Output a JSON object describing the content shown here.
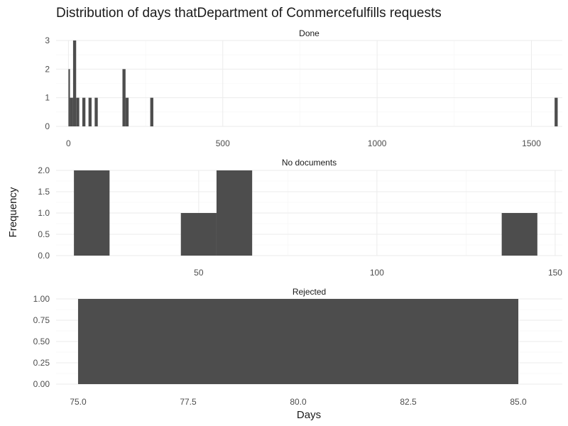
{
  "title": "Distribution of days thatDepartment of Commercefulfills requests",
  "xlabel": "Days",
  "ylabel": "Frequency",
  "colors": {
    "bar": "#4d4d4d",
    "grid_major": "#ebebeb",
    "grid_minor": "#f5f5f5",
    "text": "#1a1a1a",
    "tick": "#4d4d4d"
  },
  "chart_data": [
    {
      "type": "bar",
      "facet": "Done",
      "xlim": [
        -40,
        1600
      ],
      "ylim": [
        0,
        3
      ],
      "xticks": [
        0,
        500,
        1000,
        1500
      ],
      "xtick_labels": [
        "0",
        "500",
        "1000",
        "1500"
      ],
      "yticks": [
        0,
        1,
        2,
        3
      ],
      "ytick_labels": [
        "0",
        "1",
        "2",
        "3"
      ],
      "bars": [
        {
          "x0": 0,
          "x1": 5,
          "y": 2
        },
        {
          "x0": 5,
          "x1": 15,
          "y": 1
        },
        {
          "x0": 15,
          "x1": 25,
          "y": 3
        },
        {
          "x0": 25,
          "x1": 35,
          "y": 1
        },
        {
          "x0": 45,
          "x1": 55,
          "y": 1
        },
        {
          "x0": 65,
          "x1": 75,
          "y": 1
        },
        {
          "x0": 85,
          "x1": 95,
          "y": 1
        },
        {
          "x0": 175,
          "x1": 185,
          "y": 2
        },
        {
          "x0": 185,
          "x1": 195,
          "y": 1
        },
        {
          "x0": 265,
          "x1": 275,
          "y": 1
        },
        {
          "x0": 1575,
          "x1": 1585,
          "y": 1
        }
      ]
    },
    {
      "type": "bar",
      "facet": "No documents",
      "xlim": [
        10,
        152
      ],
      "ylim": [
        0,
        2
      ],
      "xticks": [
        50,
        100,
        150
      ],
      "xtick_labels": [
        "50",
        "100",
        "150"
      ],
      "yticks": [
        0,
        0.5,
        1,
        1.5,
        2
      ],
      "ytick_labels": [
        "0.0",
        "0.5",
        "1.0",
        "1.5",
        "2.0"
      ],
      "bars": [
        {
          "x0": 15,
          "x1": 25,
          "y": 2
        },
        {
          "x0": 45,
          "x1": 55,
          "y": 1
        },
        {
          "x0": 55,
          "x1": 65,
          "y": 2
        },
        {
          "x0": 135,
          "x1": 145,
          "y": 1
        }
      ]
    },
    {
      "type": "bar",
      "facet": "Rejected",
      "xlim": [
        74.5,
        86.0
      ],
      "ylim": [
        0,
        1
      ],
      "xticks": [
        75,
        77.5,
        80,
        82.5,
        85
      ],
      "xtick_labels": [
        "75.0",
        "77.5",
        "80.0",
        "82.5",
        "85.0"
      ],
      "yticks": [
        0,
        0.25,
        0.5,
        0.75,
        1
      ],
      "ytick_labels": [
        "0.00",
        "0.25",
        "0.50",
        "0.75",
        "1.00"
      ],
      "bars": [
        {
          "x0": 75,
          "x1": 85,
          "y": 1
        }
      ]
    }
  ]
}
